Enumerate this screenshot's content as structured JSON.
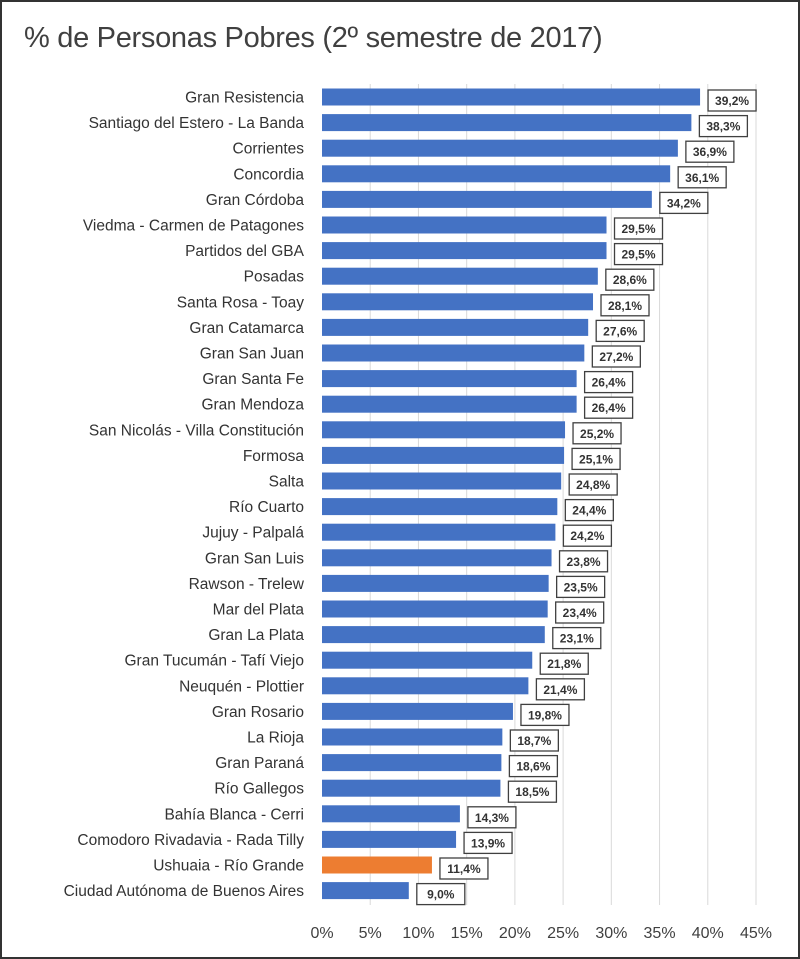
{
  "chart_data": {
    "type": "bar",
    "orientation": "horizontal",
    "title": "% de Personas Pobres (2º semestre de 2017)",
    "categories": [
      "Gran Resistencia",
      "Santiago del Estero - La Banda",
      "Corrientes",
      "Concordia",
      "Gran Córdoba",
      "Viedma - Carmen de Patagones",
      "Partidos del GBA",
      "Posadas",
      "Santa Rosa - Toay",
      "Gran Catamarca",
      "Gran San Juan",
      "Gran Santa Fe",
      "Gran Mendoza",
      "San Nicolás - Villa Constitución",
      "Formosa",
      "Salta",
      "Río Cuarto",
      "Jujuy - Palpalá",
      "Gran San Luis",
      "Rawson - Trelew",
      "Mar del Plata",
      "Gran La Plata",
      "Gran Tucumán - Tafí Viejo",
      "Neuquén - Plottier",
      "Gran Rosario",
      "La Rioja",
      "Gran Paraná",
      "Río Gallegos",
      "Bahía Blanca - Cerri",
      "Comodoro Rivadavia - Rada Tilly",
      "Ushuaia - Río Grande",
      "Ciudad Autónoma de Buenos Aires"
    ],
    "values": [
      39.2,
      38.3,
      36.9,
      36.1,
      34.2,
      29.5,
      29.5,
      28.6,
      28.1,
      27.6,
      27.2,
      26.4,
      26.4,
      25.2,
      25.1,
      24.8,
      24.4,
      24.2,
      23.8,
      23.5,
      23.4,
      23.1,
      21.8,
      21.4,
      19.8,
      18.7,
      18.6,
      18.5,
      14.3,
      13.9,
      11.4,
      9.0
    ],
    "data_labels": [
      "39,2%",
      "38,3%",
      "36,9%",
      "36,1%",
      "34,2%",
      "29,5%",
      "29,5%",
      "28,6%",
      "28,1%",
      "27,6%",
      "27,2%",
      "26,4%",
      "26,4%",
      "25,2%",
      "25,1%",
      "24,8%",
      "24,4%",
      "24,2%",
      "23,8%",
      "23,5%",
      "23,4%",
      "23,1%",
      "21,8%",
      "21,4%",
      "19,8%",
      "18,7%",
      "18,6%",
      "18,5%",
      "14,3%",
      "13,9%",
      "11,4%",
      "9,0%"
    ],
    "highlight": "Ushuaia - Río Grande",
    "xlim": [
      0,
      45
    ],
    "xticks": [
      "0%",
      "5%",
      "10%",
      "15%",
      "20%",
      "25%",
      "30%",
      "35%",
      "40%",
      "45%"
    ],
    "grid": "vertical",
    "colors": {
      "bar": "#4472c4",
      "highlight": "#ed7d31"
    }
  }
}
